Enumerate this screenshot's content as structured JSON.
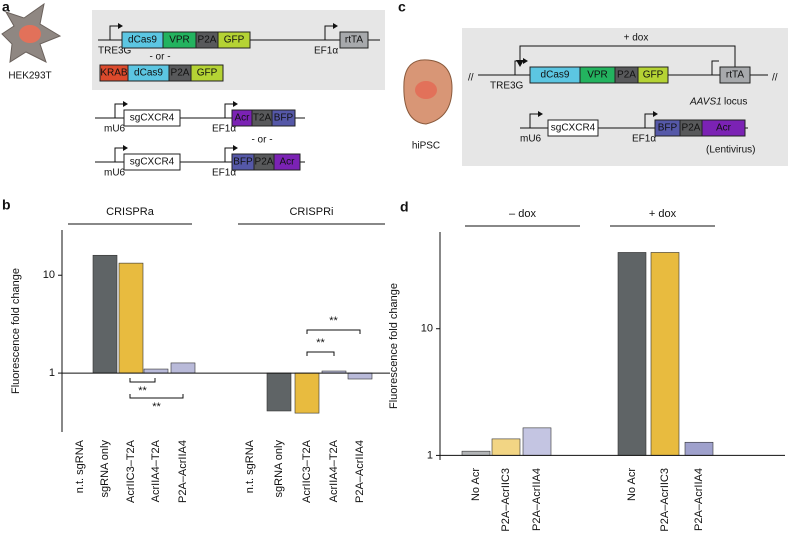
{
  "panel_a": {
    "label": "a",
    "cell": "HEK293T",
    "promoters": [
      "TRE3G",
      "EF1α",
      "mU6",
      "EF1α",
      "mU6",
      "EF1α"
    ],
    "blocks": [
      {
        "label": "dCas9",
        "color": "#5cc6e2"
      },
      {
        "label": "VPR",
        "color": "#23b35f"
      },
      {
        "label": "P2A",
        "color": "#58595b"
      },
      {
        "label": "GFP",
        "color": "#b5d334"
      },
      {
        "label": "rtTA",
        "color": "#a7a9ac"
      },
      {
        "label": "KRAB",
        "color": "#dc4a2c"
      },
      {
        "label": "dCas9",
        "color": "#5cc6e2"
      },
      {
        "label": "P2A",
        "color": "#58595b"
      },
      {
        "label": "GFP",
        "color": "#b5d334"
      },
      {
        "label": "sgCXCR4",
        "color": "#ffffff"
      },
      {
        "label": "Acr",
        "color": "#7b22b4"
      },
      {
        "label": "T2A",
        "color": "#58595b"
      },
      {
        "label": "BFP",
        "color": "#5558a8"
      },
      {
        "label": "sgCXCR4",
        "color": "#ffffff"
      },
      {
        "label": "BFP",
        "color": "#5558a8"
      },
      {
        "label": "P2A",
        "color": "#58595b"
      },
      {
        "label": "Acr",
        "color": "#7b22b4"
      }
    ],
    "separators": [
      "- or -",
      "- or -"
    ]
  },
  "panel_c": {
    "label": "c",
    "cell": "hiPSC",
    "induction": "+ dox",
    "promoters": [
      "TRE3G",
      "mU6",
      "EF1α"
    ],
    "blocks": [
      {
        "label": "dCas9",
        "color": "#5cc6e2"
      },
      {
        "label": "VPR",
        "color": "#23b35f"
      },
      {
        "label": "P2A",
        "color": "#58595b"
      },
      {
        "label": "GFP",
        "color": "#b5d334"
      },
      {
        "label": "rtTA",
        "color": "#a7a9ac"
      },
      {
        "label": "sgCXCR4",
        "color": "#ffffff"
      },
      {
        "label": "BFP",
        "color": "#5558a8"
      },
      {
        "label": "P2A",
        "color": "#58595b"
      },
      {
        "label": "Acr",
        "color": "#7b22b4"
      }
    ],
    "locus": "AAVS1",
    "locus_suffix": "locus",
    "vector": "(Lentivirus)"
  },
  "chart_data": [
    {
      "type": "bar",
      "label": "b",
      "ylabel": "Fluorescence fold change",
      "log_scale": true,
      "ylim": [
        0.25,
        29
      ],
      "yticks": [
        1,
        10
      ],
      "groups": [
        "CRISPRa",
        "CRISPRi"
      ],
      "categories": [
        "n.t. sgRNA",
        "sgRNA only",
        "AcrIIC3–T2A",
        "AcrIIA4–T2A",
        "P2A–AcrIIA4",
        "n.t. sgRNA",
        "sgRNA only",
        "AcrIIC3–T2A",
        "AcrIIA4–T2A",
        "P2A–AcrIIA4"
      ],
      "values": [
        1,
        16,
        13.3,
        1.1,
        1.27,
        1,
        0.41,
        0.39,
        1.05,
        0.87
      ],
      "colors": [
        "#bcbec0",
        "#5f6466",
        "#e8bb3f",
        "#b9bad9",
        "#b9bad9",
        "#bcbec0",
        "#5f6466",
        "#e8bb3f",
        "#b9bad9",
        "#b9bad9"
      ],
      "annotations": [
        "**",
        "**",
        "**",
        "**"
      ]
    },
    {
      "type": "bar",
      "label": "d",
      "ylabel": "Fluorescence fold change",
      "log_scale": true,
      "ylim": [
        0.92,
        58
      ],
      "yticks": [
        1,
        10
      ],
      "groups": [
        "– dox",
        "+ dox"
      ],
      "categories": [
        "No Acr",
        "P2A–AcrIIC3",
        "P2A–AcrIIA4",
        "No Acr",
        "P2A–AcrIIC3",
        "P2A–AcrIIA4"
      ],
      "values": [
        1.08,
        1.35,
        1.65,
        40,
        40,
        1.27
      ],
      "colors": [
        "#b3b5b7",
        "#f2d584",
        "#c4c5e2",
        "#5f6466",
        "#e8bb3f",
        "#9fa1cc"
      ]
    }
  ]
}
